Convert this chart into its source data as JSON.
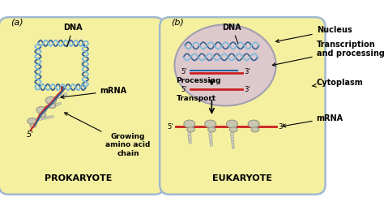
{
  "bg_color": "#ffffff",
  "cell_fill": "#f5f0a0",
  "cell_edge": "#a0b8d0",
  "nucleus_fill": "#ddc8cc",
  "nucleus_edge": "#a0a0b0",
  "dna_blue_dark": "#3a6090",
  "dna_blue_light": "#7ab8d8",
  "dna_gray": "#c8d8e8",
  "mrna_red": "#cc2020",
  "mrna_blue": "#2060a0",
  "ribosome_fill": "#c8c8b0",
  "ribosome_edge": "#909080",
  "chain_fill": "#d8d8c8",
  "chain_edge": "#a0a090",
  "title_a": "(a)",
  "title_b": "(b)",
  "label_prokaryote": "PROKARYOTE",
  "label_eukaryote": "EUKARYOTE",
  "label_dna_a": "DNA",
  "label_dna_b": "DNA",
  "label_mrna_a": "mRNA",
  "label_nucleus": "Nucleus",
  "label_transcription": "Transcription\nand processing",
  "label_cytoplasm": "Cytoplasm",
  "label_mrna_b": "mRNA",
  "label_processing": "Processing",
  "label_transport": "Transport",
  "label_growing": "Growing\namino acid\nchain",
  "label_5a": "5'",
  "label_5b1": "5'",
  "label_3b1": "3'",
  "label_5b2": "5'",
  "label_3b2": "3'",
  "label_5b3": "5'",
  "label_3b3": "3'"
}
